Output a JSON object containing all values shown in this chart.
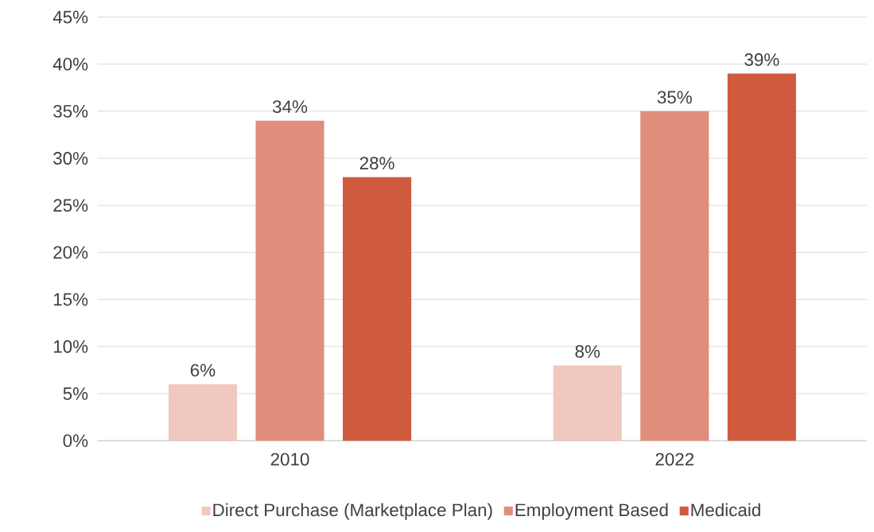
{
  "chart_data": {
    "type": "bar",
    "categories": [
      "2010",
      "2022"
    ],
    "series": [
      {
        "name": "Direct Purchase (Marketplace Plan)",
        "color": "#f0c8bf",
        "values": [
          6,
          8
        ],
        "value_labels": [
          "6%",
          "8%"
        ]
      },
      {
        "name": "Employment Based",
        "color": "#e08e7b",
        "values": [
          34,
          35
        ],
        "value_labels": [
          "34%",
          "35%"
        ]
      },
      {
        "name": "Medicaid",
        "color": "#d05a3e",
        "values": [
          28,
          39
        ],
        "value_labels": [
          "28%",
          "39%"
        ]
      }
    ],
    "ylim": [
      0,
      45
    ],
    "yticks": [
      {
        "value": 0,
        "label": "0%"
      },
      {
        "value": 5,
        "label": "5%"
      },
      {
        "value": 10,
        "label": "10%"
      },
      {
        "value": 15,
        "label": "15%"
      },
      {
        "value": 20,
        "label": "20%"
      },
      {
        "value": 25,
        "label": "25%"
      },
      {
        "value": 30,
        "label": "30%"
      },
      {
        "value": 35,
        "label": "35%"
      },
      {
        "value": 40,
        "label": "40%"
      },
      {
        "value": 45,
        "label": "45%"
      }
    ],
    "grid": "y",
    "legend": "bottom"
  }
}
